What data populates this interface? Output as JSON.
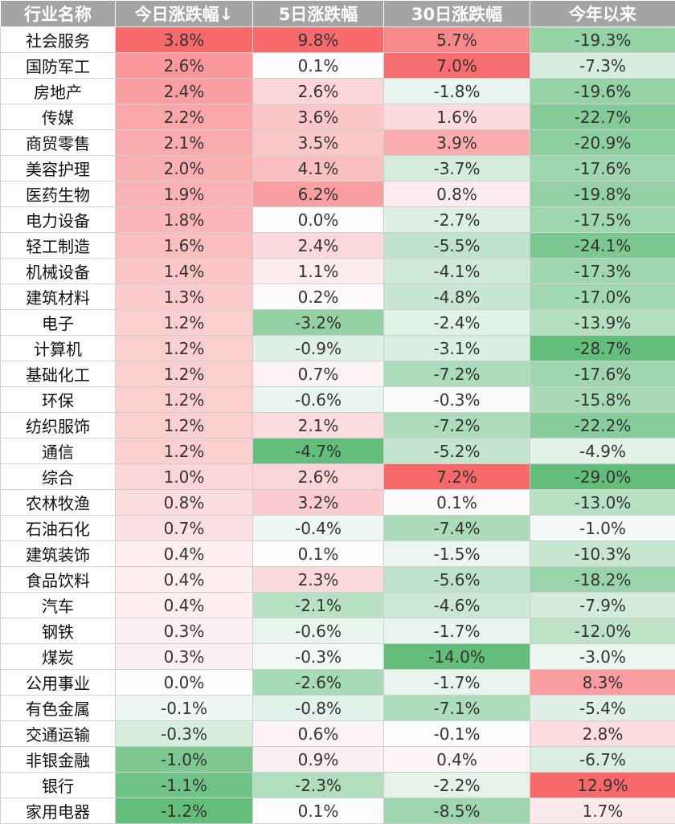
{
  "header": {
    "columns": [
      "行业名称",
      "今日涨跌幅↓",
      "5日涨跌幅",
      "30日涨跌幅",
      "今年以来"
    ]
  },
  "rows": [
    {
      "name": "社会服务",
      "today": "3.8%",
      "d5": "9.8%",
      "d30": "5.7%",
      "ytd": "-19.3%"
    },
    {
      "name": "国防军工",
      "today": "2.6%",
      "d5": "0.1%",
      "d30": "7.0%",
      "ytd": "-7.3%"
    },
    {
      "name": "房地产",
      "today": "2.4%",
      "d5": "2.6%",
      "d30": "-1.8%",
      "ytd": "-19.6%"
    },
    {
      "name": "传媒",
      "today": "2.2%",
      "d5": "3.6%",
      "d30": "1.6%",
      "ytd": "-22.7%"
    },
    {
      "name": "商贸零售",
      "today": "2.1%",
      "d5": "3.5%",
      "d30": "3.9%",
      "ytd": "-20.9%"
    },
    {
      "name": "美容护理",
      "today": "2.0%",
      "d5": "4.1%",
      "d30": "-3.7%",
      "ytd": "-17.6%"
    },
    {
      "name": "医药生物",
      "today": "1.9%",
      "d5": "6.2%",
      "d30": "0.8%",
      "ytd": "-19.8%"
    },
    {
      "name": "电力设备",
      "today": "1.8%",
      "d5": "0.0%",
      "d30": "-2.7%",
      "ytd": "-17.5%"
    },
    {
      "name": "轻工制造",
      "today": "1.6%",
      "d5": "2.4%",
      "d30": "-5.5%",
      "ytd": "-24.1%"
    },
    {
      "name": "机械设备",
      "today": "1.4%",
      "d5": "1.1%",
      "d30": "-4.1%",
      "ytd": "-17.3%"
    },
    {
      "name": "建筑材料",
      "today": "1.3%",
      "d5": "0.2%",
      "d30": "-4.8%",
      "ytd": "-17.0%"
    },
    {
      "name": "电子",
      "today": "1.2%",
      "d5": "-3.2%",
      "d30": "-2.4%",
      "ytd": "-13.9%"
    },
    {
      "name": "计算机",
      "today": "1.2%",
      "d5": "-0.9%",
      "d30": "-3.1%",
      "ytd": "-28.7%"
    },
    {
      "name": "基础化工",
      "today": "1.2%",
      "d5": "0.7%",
      "d30": "-7.2%",
      "ytd": "-17.6%"
    },
    {
      "name": "环保",
      "today": "1.2%",
      "d5": "-0.6%",
      "d30": "-0.3%",
      "ytd": "-15.8%"
    },
    {
      "name": "纺织服饰",
      "today": "1.2%",
      "d5": "2.1%",
      "d30": "-7.2%",
      "ytd": "-22.2%"
    },
    {
      "name": "通信",
      "today": "1.2%",
      "d5": "-4.7%",
      "d30": "-5.2%",
      "ytd": "-4.9%"
    },
    {
      "name": "综合",
      "today": "1.0%",
      "d5": "2.6%",
      "d30": "7.2%",
      "ytd": "-29.0%"
    },
    {
      "name": "农林牧渔",
      "today": "0.8%",
      "d5": "3.2%",
      "d30": "0.1%",
      "ytd": "-13.0%"
    },
    {
      "name": "石油石化",
      "today": "0.7%",
      "d5": "-0.4%",
      "d30": "-7.4%",
      "ytd": "-1.0%"
    },
    {
      "name": "建筑装饰",
      "today": "0.4%",
      "d5": "0.1%",
      "d30": "-1.5%",
      "ytd": "-10.3%"
    },
    {
      "name": "食品饮料",
      "today": "0.4%",
      "d5": "2.3%",
      "d30": "-5.6%",
      "ytd": "-18.2%"
    },
    {
      "name": "汽车",
      "today": "0.4%",
      "d5": "-2.1%",
      "d30": "-4.6%",
      "ytd": "-7.9%"
    },
    {
      "name": "钢铁",
      "today": "0.3%",
      "d5": "-0.6%",
      "d30": "-1.7%",
      "ytd": "-12.0%"
    },
    {
      "name": "煤炭",
      "today": "0.3%",
      "d5": "-0.3%",
      "d30": "-14.0%",
      "ytd": "-3.0%"
    },
    {
      "name": "公用事业",
      "today": "0.0%",
      "d5": "-2.6%",
      "d30": "-1.7%",
      "ytd": "8.3%"
    },
    {
      "name": "有色金属",
      "today": "-0.1%",
      "d5": "-0.8%",
      "d30": "-7.1%",
      "ytd": "-5.4%"
    },
    {
      "name": "交通运输",
      "today": "-0.3%",
      "d5": "0.6%",
      "d30": "-0.1%",
      "ytd": "2.8%"
    },
    {
      "name": "非银金融",
      "today": "-1.0%",
      "d5": "0.9%",
      "d30": "0.4%",
      "ytd": "-6.7%"
    },
    {
      "name": "银行",
      "today": "-1.1%",
      "d5": "-2.3%",
      "d30": "-2.2%",
      "ytd": "12.9%"
    },
    {
      "name": "家用电器",
      "today": "-1.2%",
      "d5": "0.1%",
      "d30": "-8.5%",
      "ytd": "1.7%"
    }
  ],
  "colors": {
    "header_bg": "#a4a4a4",
    "positive_max": "#f8696b",
    "negative_max": "#63be7b",
    "neutral": "#fcfcff"
  }
}
